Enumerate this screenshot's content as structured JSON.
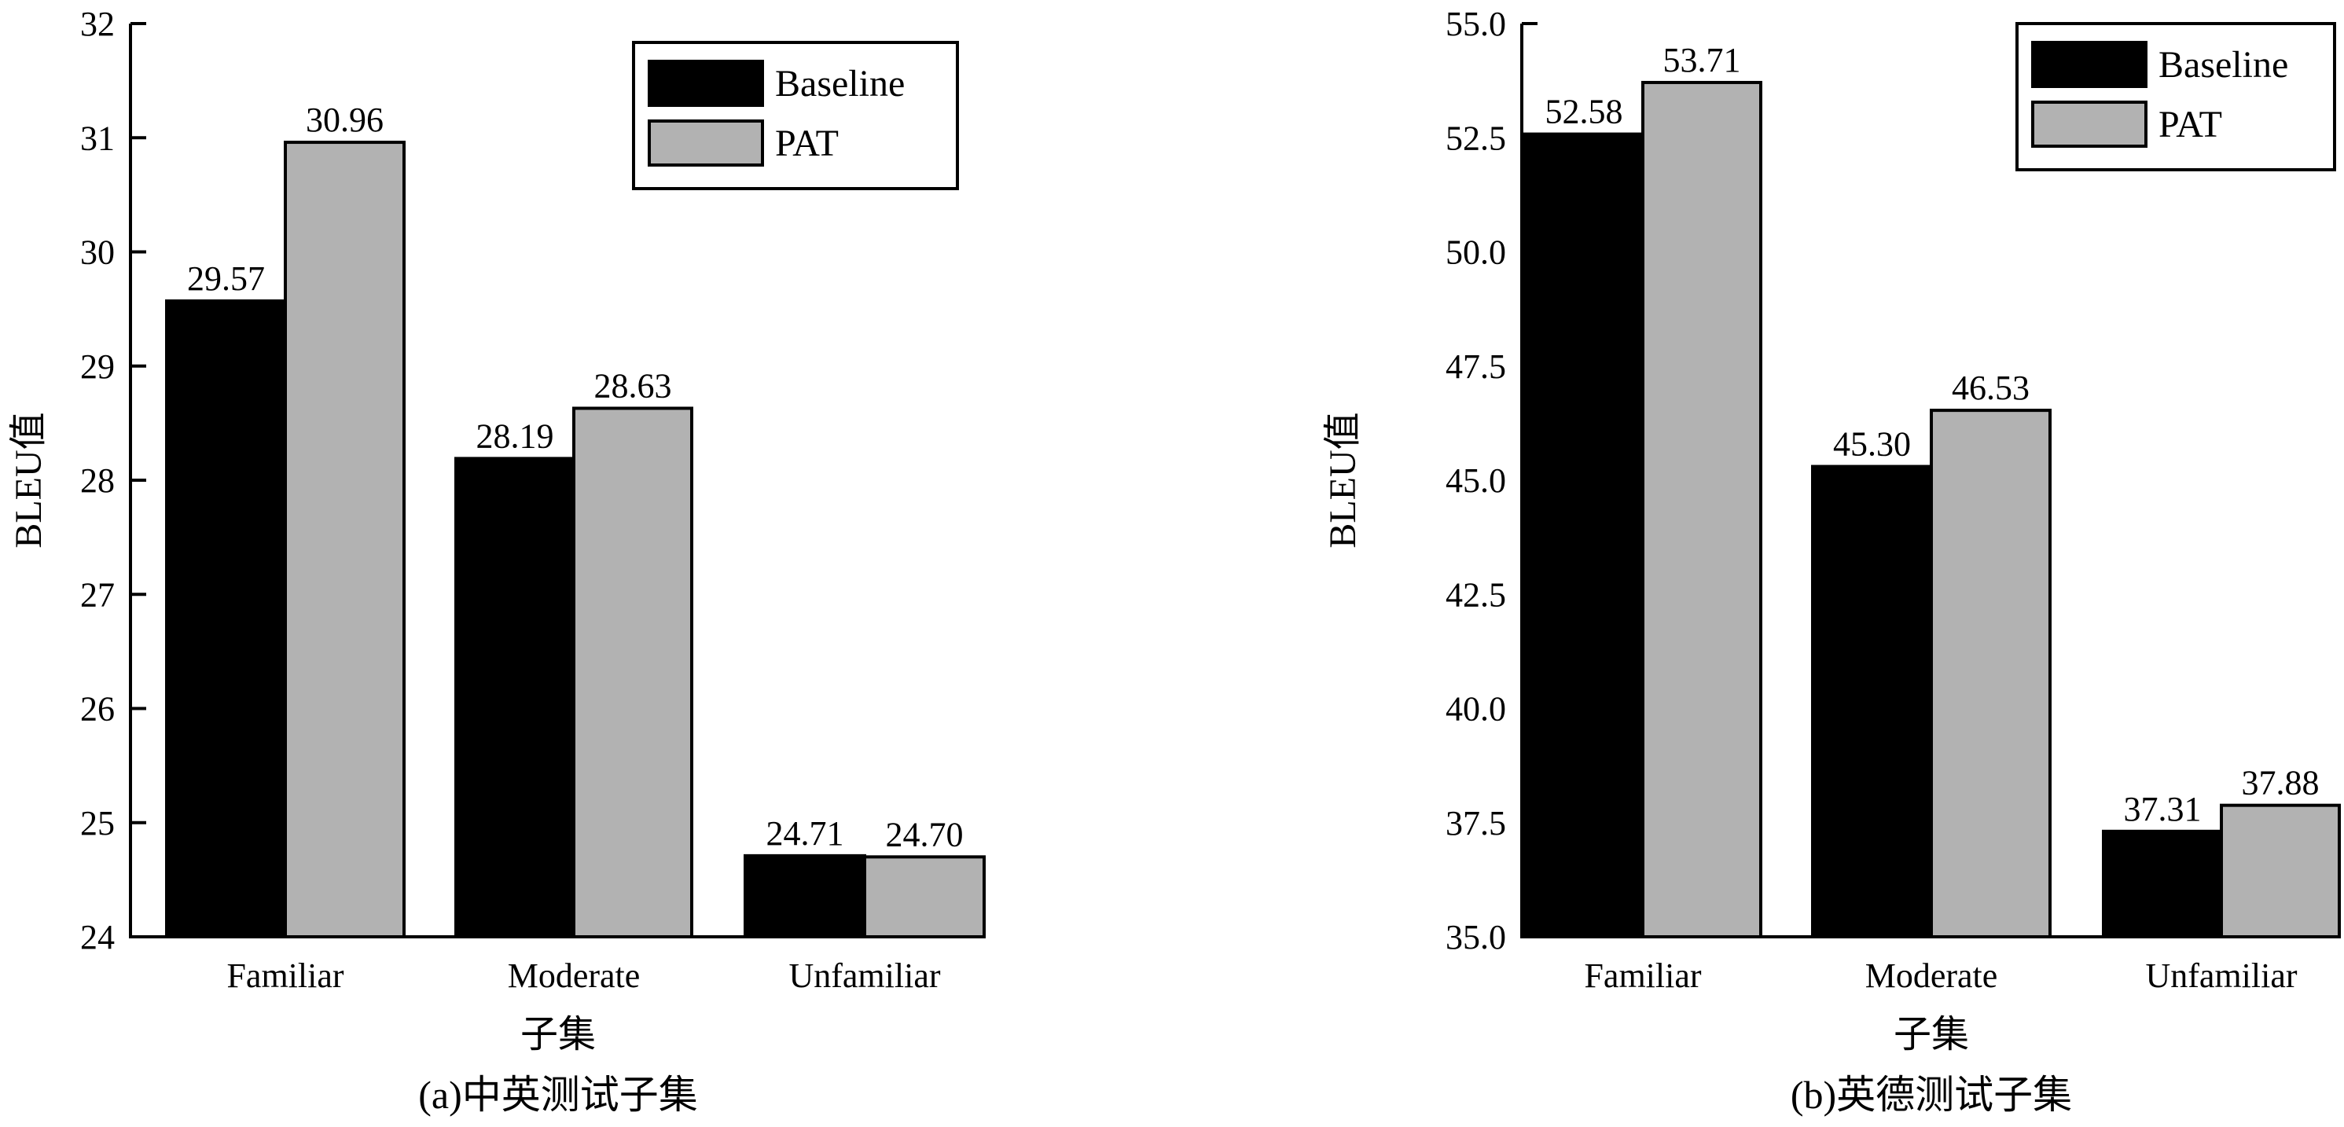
{
  "chart_data": [
    {
      "type": "bar",
      "categories": [
        "Familiar",
        "Moderate",
        "Unfamiliar"
      ],
      "series": [
        {
          "name": "Baseline",
          "values": [
            29.57,
            28.19,
            24.71
          ]
        },
        {
          "name": "PAT",
          "values": [
            30.96,
            28.63,
            24.7
          ]
        }
      ],
      "data_labels": [
        [
          "29.57",
          "28.19",
          "24.71"
        ],
        [
          "30.96",
          "28.63",
          "24.70"
        ]
      ],
      "yticks": [
        "24",
        "25",
        "26",
        "27",
        "28",
        "29",
        "30",
        "31",
        "32"
      ],
      "ylim": [
        24,
        32
      ],
      "ylabel": "BLEU值",
      "xlabel": "子集",
      "caption": "(a)中英测试子集",
      "legend_position": "top-right",
      "grid": false
    },
    {
      "type": "bar",
      "categories": [
        "Familiar",
        "Moderate",
        "Unfamiliar"
      ],
      "series": [
        {
          "name": "Baseline",
          "values": [
            52.58,
            45.3,
            37.31
          ]
        },
        {
          "name": "PAT",
          "values": [
            53.71,
            46.53,
            37.88
          ]
        }
      ],
      "data_labels": [
        [
          "52.58",
          "45.30",
          "37.31"
        ],
        [
          "53.71",
          "46.53",
          "37.88"
        ]
      ],
      "yticks": [
        "35.0",
        "37.5",
        "40.0",
        "42.5",
        "45.0",
        "47.5",
        "50.0",
        "52.5",
        "55.0"
      ],
      "ylim": [
        35,
        55
      ],
      "ylabel": "BLEU值",
      "xlabel": "子集",
      "caption": "(b)英德测试子集",
      "legend_position": "top-right",
      "grid": false
    }
  ],
  "colors": {
    "Baseline": "#000000",
    "PAT": "#b2b2b2"
  }
}
